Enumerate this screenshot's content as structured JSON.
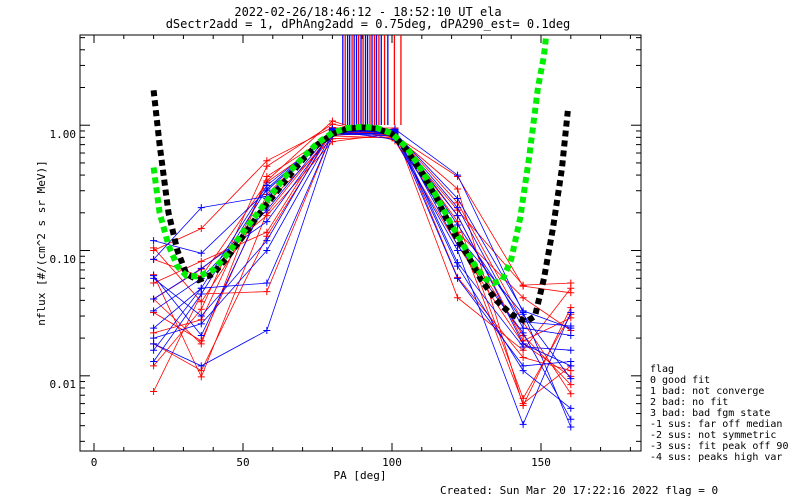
{
  "chart_data": {
    "type": "scatter",
    "title_line1": "2022-02-26/18:46:12 - 18:52:10 UT ela",
    "title_line2": "dSectr2add = 1, dPhAng2add = 0.75deg, dPA290_est=   0.1deg",
    "xlabel": "PA [deg]",
    "ylabel": "nflux [#/(cm^2 s sr MeV)]",
    "x_ticks": [
      "0",
      "50",
      "100",
      "150"
    ],
    "y_ticks": [
      "0.01",
      "0.10",
      "1.00"
    ],
    "xlim": [
      -5,
      183
    ],
    "ylim_log10": [
      -2.6,
      0.72
    ],
    "y_scale": "log",
    "legend": {
      "title": "flag",
      "items": [
        " 0 good fit",
        " 1 bad: not converge",
        " 2 bad: no fit",
        " 3 bad: bad fgm state",
        "-1 sus: far off median",
        "-2 sus: not symmetric",
        "-3 sus: fit peak off 90",
        "-4 sus: peaks high var"
      ]
    },
    "footer": "Created: Sun Mar 20 17:22:16 2022   flag = 0",
    "colors": {
      "red": "#ff0000",
      "blue": "#0000ff",
      "black": "#000000",
      "green": "#00ee00"
    },
    "fit_black": {
      "name": "fit (black)",
      "x": [
        20,
        22,
        25,
        28,
        31,
        35,
        40,
        45,
        50,
        55,
        60,
        65,
        70,
        75,
        80,
        85,
        90,
        95,
        100,
        105,
        110,
        115,
        120,
        125,
        130,
        135,
        140,
        145,
        148,
        151,
        154,
        157,
        159
      ],
      "y": [
        1.9,
        0.7,
        0.2,
        0.1,
        0.065,
        0.058,
        0.065,
        0.09,
        0.13,
        0.19,
        0.27,
        0.38,
        0.53,
        0.7,
        0.85,
        0.94,
        0.96,
        0.94,
        0.85,
        0.63,
        0.42,
        0.26,
        0.15,
        0.095,
        0.058,
        0.04,
        0.031,
        0.027,
        0.03,
        0.06,
        0.15,
        0.45,
        1.3
      ]
    },
    "fit_green": {
      "name": "fit (green)",
      "x": [
        20,
        22,
        25,
        28,
        31,
        35,
        40,
        45,
        50,
        55,
        60,
        65,
        70,
        75,
        80,
        85,
        90,
        95,
        100,
        105,
        110,
        115,
        120,
        125,
        128,
        131,
        134,
        137,
        140,
        143,
        146,
        149,
        151,
        152
      ],
      "y": [
        0.46,
        0.2,
        0.11,
        0.075,
        0.063,
        0.062,
        0.07,
        0.095,
        0.14,
        0.2,
        0.29,
        0.41,
        0.55,
        0.72,
        0.87,
        0.95,
        0.97,
        0.95,
        0.86,
        0.66,
        0.44,
        0.27,
        0.16,
        0.1,
        0.075,
        0.06,
        0.055,
        0.058,
        0.085,
        0.18,
        0.55,
        2.0,
        3.6,
        6.0
      ]
    },
    "vertical_markers": {
      "x": [
        83.5,
        84.3,
        85.1,
        85.8,
        86.6,
        87.3,
        88.1,
        88.8,
        89.6,
        90.3,
        91.1,
        91.8,
        92.6,
        93.3,
        94.1,
        94.8,
        95.6,
        96.4,
        97.5,
        98.6,
        100.8,
        103.0
      ],
      "colors": [
        "blue",
        "red",
        "blue",
        "blue",
        "red",
        "blue",
        "blue",
        "red",
        "blue",
        "red",
        "blue",
        "blue",
        "red",
        "blue",
        "red",
        "blue",
        "red",
        "blue",
        "red",
        "blue",
        "red",
        "red"
      ]
    },
    "data_lines": [
      {
        "color": "red",
        "x": [
          20,
          36,
          58,
          80,
          101,
          122,
          144,
          160
        ],
        "y": [
          0.012,
          0.034,
          0.47,
          1.02,
          0.82,
          0.39,
          0.052,
          0.046
        ]
      },
      {
        "color": "red",
        "x": [
          20,
          36,
          58,
          80,
          101,
          122,
          144,
          160
        ],
        "y": [
          0.018,
          0.011,
          0.13,
          0.89,
          0.87,
          0.14,
          0.006,
          0.012
        ]
      },
      {
        "color": "red",
        "x": [
          20,
          36,
          58,
          80,
          101,
          122,
          144,
          160
        ],
        "y": [
          0.0075,
          0.045,
          0.047,
          0.86,
          0.9,
          0.13,
          0.021,
          0.0085
        ]
      },
      {
        "color": "red",
        "x": [
          20,
          36,
          58,
          80,
          101,
          122,
          144,
          160
        ],
        "y": [
          0.064,
          0.0098,
          0.2,
          0.87,
          0.89,
          0.042,
          0.016,
          0.05
        ]
      },
      {
        "color": "red",
        "x": [
          20,
          36,
          58,
          80,
          101,
          122,
          144,
          160
        ],
        "y": [
          0.1,
          0.15,
          0.52,
          0.96,
          0.81,
          0.19,
          0.019,
          0.029
        ]
      },
      {
        "color": "red",
        "x": [
          20,
          36,
          58,
          80,
          101,
          122,
          144,
          160
        ],
        "y": [
          0.085,
          0.062,
          0.35,
          0.82,
          0.79,
          0.14,
          0.042,
          0.023
        ]
      },
      {
        "color": "red",
        "x": [
          20,
          36,
          58,
          80,
          101,
          122,
          144,
          160
        ],
        "y": [
          0.041,
          0.071,
          0.19,
          0.74,
          0.86,
          0.24,
          0.027,
          0.0072
        ]
      },
      {
        "color": "red",
        "x": [
          20,
          36,
          58,
          80,
          101,
          122,
          144,
          160
        ],
        "y": [
          0.022,
          0.028,
          0.36,
          1.08,
          0.75,
          0.11,
          0.018,
          0.0099
        ]
      },
      {
        "color": "red",
        "x": [
          20,
          36,
          58,
          80,
          101,
          122,
          144,
          160
        ],
        "y": [
          0.032,
          0.019,
          0.28,
          0.91,
          0.84,
          0.17,
          0.0066,
          0.031
        ]
      },
      {
        "color": "red",
        "x": [
          20,
          36,
          58,
          80,
          101,
          122,
          144,
          160
        ],
        "y": [
          0.105,
          0.039,
          0.24,
          0.78,
          0.81,
          0.21,
          0.053,
          0.055
        ]
      },
      {
        "color": "red",
        "x": [
          20,
          36,
          58,
          80,
          101,
          122,
          144,
          160
        ],
        "y": [
          0.055,
          0.082,
          0.14,
          0.95,
          0.95,
          0.061,
          0.014,
          0.011
        ]
      },
      {
        "color": "red",
        "x": [
          20,
          36,
          58,
          80,
          101,
          122,
          144,
          160
        ],
        "y": [
          0.041,
          0.018,
          0.39,
          0.85,
          0.83,
          0.31,
          0.0058,
          0.035
        ]
      },
      {
        "color": "blue",
        "x": [
          20,
          36,
          58,
          80,
          101,
          122,
          144,
          160
        ],
        "y": [
          0.12,
          0.095,
          0.3,
          0.88,
          0.91,
          0.11,
          0.022,
          0.0045
        ]
      },
      {
        "color": "blue",
        "x": [
          20,
          36,
          58,
          80,
          101,
          122,
          144,
          160
        ],
        "y": [
          0.063,
          0.021,
          0.26,
          0.93,
          0.88,
          0.075,
          0.011,
          0.0055
        ]
      },
      {
        "color": "blue",
        "x": [
          20,
          36,
          58,
          80,
          101,
          122,
          144,
          160
        ],
        "y": [
          0.024,
          0.05,
          0.055,
          0.86,
          0.85,
          0.22,
          0.024,
          0.021
        ]
      },
      {
        "color": "blue",
        "x": [
          20,
          36,
          58,
          80,
          101,
          122,
          144,
          160
        ],
        "y": [
          0.013,
          0.045,
          0.31,
          0.9,
          0.77,
          0.1,
          0.0041,
          0.032
        ]
      },
      {
        "color": "blue",
        "x": [
          20,
          36,
          58,
          80,
          101,
          122,
          144,
          160
        ],
        "y": [
          0.041,
          0.072,
          0.17,
          0.89,
          0.93,
          0.4,
          0.032,
          0.0039
        ]
      },
      {
        "color": "blue",
        "x": [
          20,
          36,
          58,
          80,
          101,
          122,
          144,
          160
        ],
        "y": [
          0.018,
          0.012,
          0.023,
          0.83,
          0.88,
          0.06,
          0.012,
          0.013
        ]
      },
      {
        "color": "blue",
        "x": [
          20,
          36,
          58,
          80,
          101,
          122,
          144,
          160
        ],
        "y": [
          0.085,
          0.22,
          0.27,
          0.92,
          0.87,
          0.26,
          0.033,
          0.024
        ]
      },
      {
        "color": "blue",
        "x": [
          20,
          36,
          58,
          80,
          101,
          122,
          144,
          160
        ],
        "y": [
          0.02,
          0.026,
          0.1,
          0.86,
          0.82,
          0.13,
          0.031,
          0.0095
        ]
      },
      {
        "color": "blue",
        "x": [
          20,
          36,
          58,
          80,
          101,
          122,
          144,
          160
        ],
        "y": [
          0.033,
          0.06,
          0.21,
          0.91,
          0.9,
          0.16,
          0.027,
          0.025
        ]
      },
      {
        "color": "blue",
        "x": [
          20,
          36,
          58,
          80,
          101,
          122,
          144,
          160
        ],
        "y": [
          0.06,
          0.03,
          0.12,
          0.94,
          0.92,
          0.08,
          0.017,
          0.016
        ]
      },
      {
        "color": "blue",
        "x": [
          20,
          36,
          58,
          80,
          101,
          122,
          144,
          160
        ],
        "y": [
          0.016,
          0.05,
          0.33,
          0.87,
          0.86,
          0.19,
          0.018,
          0.012
        ]
      }
    ]
  }
}
